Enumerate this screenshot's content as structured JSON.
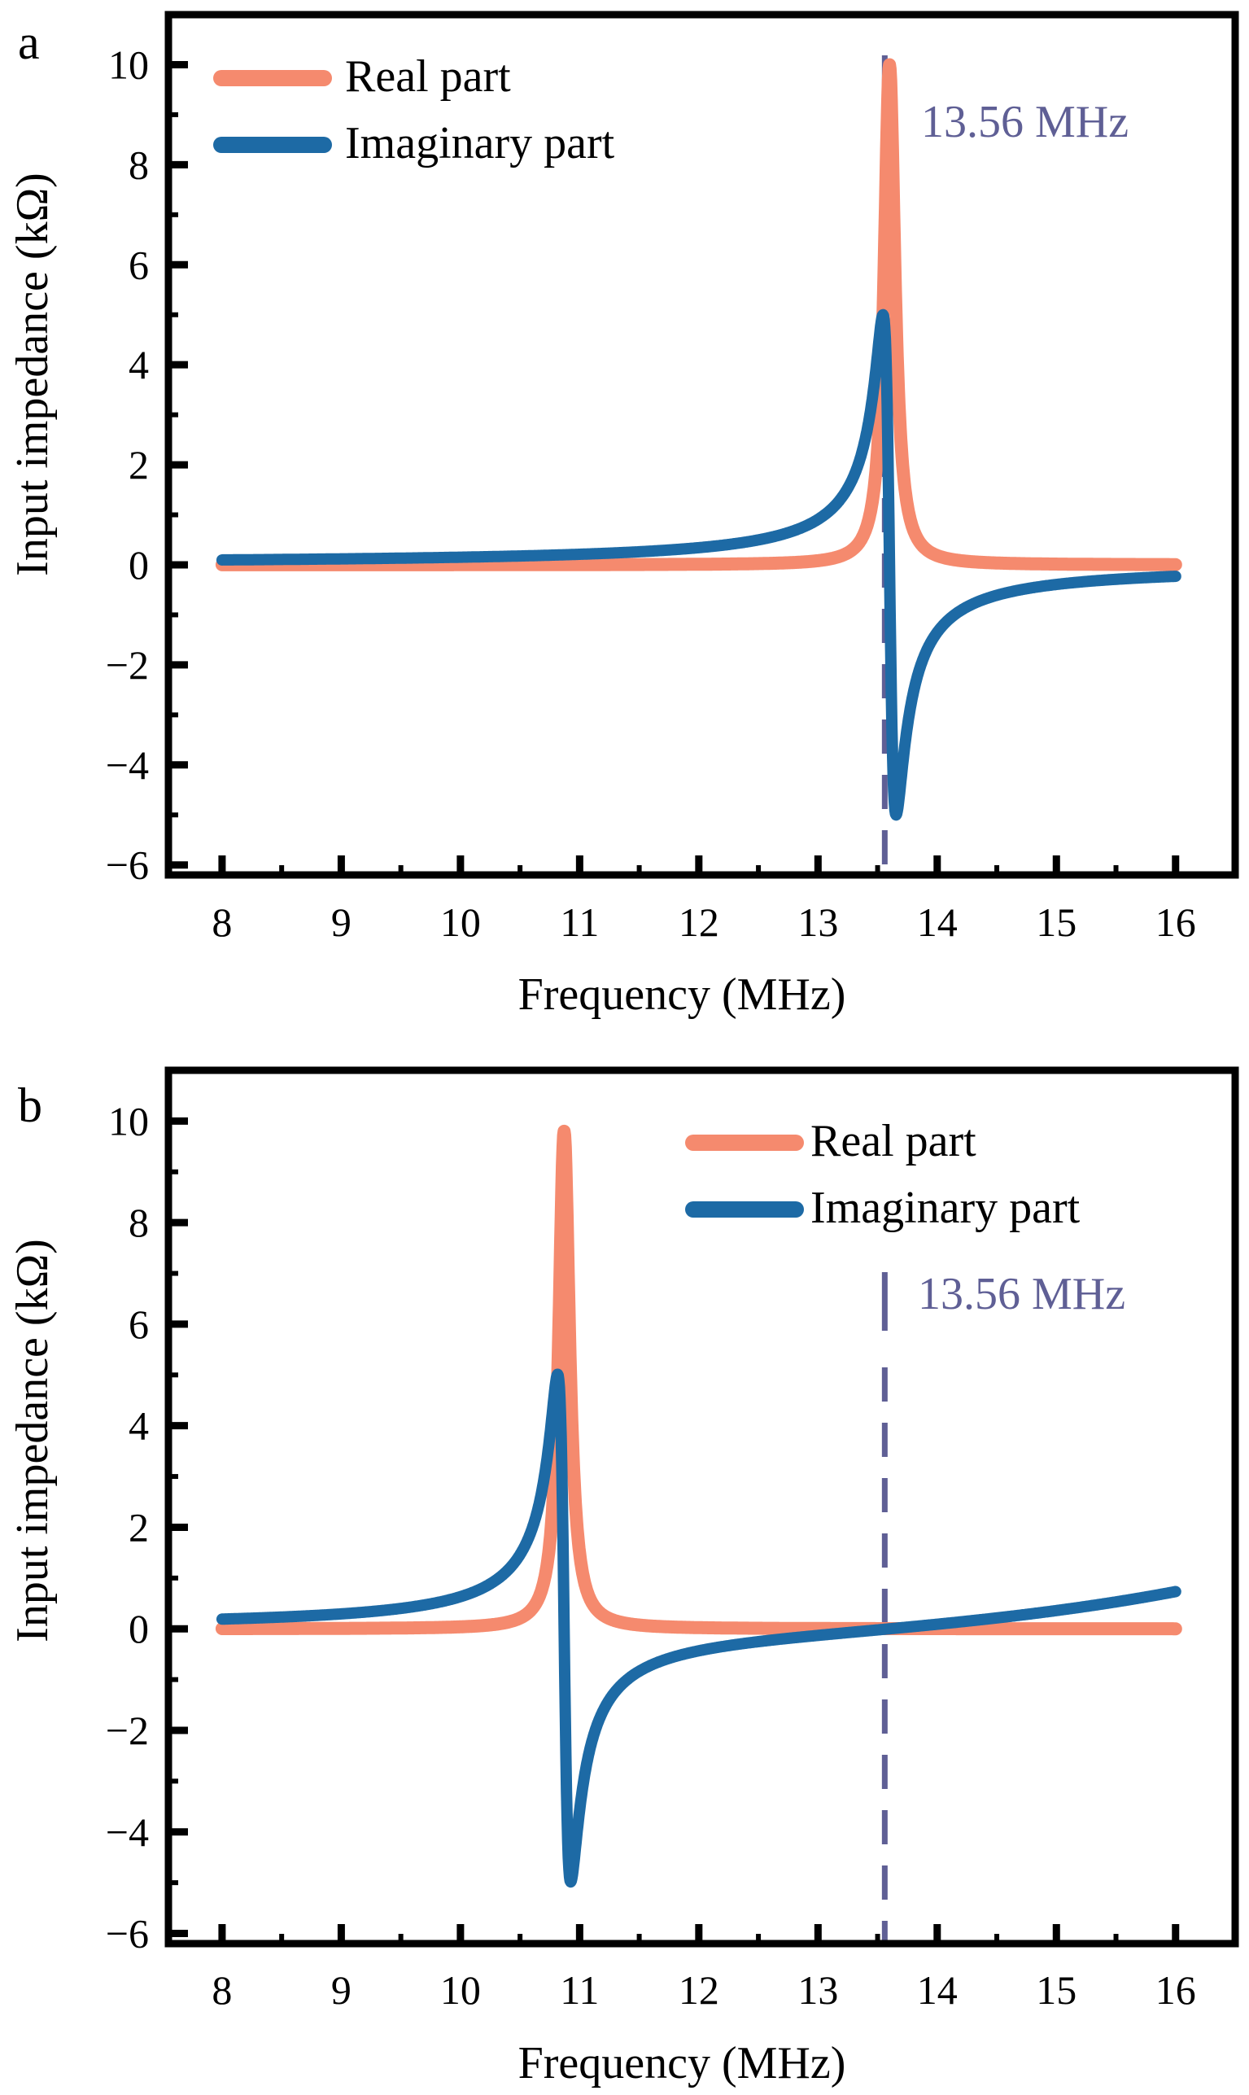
{
  "chart_data": [
    {
      "panel": "a",
      "type": "line",
      "xlabel": "Frequency (MHz)",
      "ylabel": "Input impedance (kΩ)",
      "xlim": [
        7.55,
        16.5
      ],
      "ylim": [
        -6.2,
        11.0
      ],
      "xticks": [
        8,
        9,
        10,
        11,
        12,
        13,
        14,
        15,
        16
      ],
      "yticks": [
        -6,
        -4,
        -2,
        0,
        2,
        4,
        6,
        8,
        10
      ],
      "legend": "top-left",
      "resonance_mhz": 13.6,
      "real_peak_kohm": 10.0,
      "imag_max_kohm": 5.0,
      "imag_min_kohm": -5.0,
      "annotation": {
        "text": "13.56 MHz",
        "x": 13.56
      },
      "series": [
        {
          "name": "Real part",
          "color": "#f58a6e"
        },
        {
          "name": "Imaginary part",
          "color": "#1d6aa5"
        }
      ]
    },
    {
      "panel": "b",
      "type": "line",
      "xlabel": "Frequency (MHz)",
      "ylabel": "Input impedance (kΩ)",
      "xlim": [
        7.55,
        16.5
      ],
      "ylim": [
        -6.2,
        11.0
      ],
      "xticks": [
        8,
        9,
        10,
        11,
        12,
        13,
        14,
        15,
        16
      ],
      "yticks": [
        -6,
        -4,
        -2,
        0,
        2,
        4,
        6,
        8,
        10
      ],
      "legend": "top-right",
      "resonance_mhz": 10.87,
      "real_peak_kohm": 9.8,
      "imag_max_kohm": 5.0,
      "imag_min_kohm": -5.0,
      "annotation": {
        "text": "13.56 MHz",
        "x": 13.56
      },
      "series": [
        {
          "name": "Real part",
          "color": "#f58a6e"
        },
        {
          "name": "Imaginary part",
          "color": "#1d6aa5"
        }
      ]
    }
  ],
  "dashed_line_color": "#5f5f95"
}
